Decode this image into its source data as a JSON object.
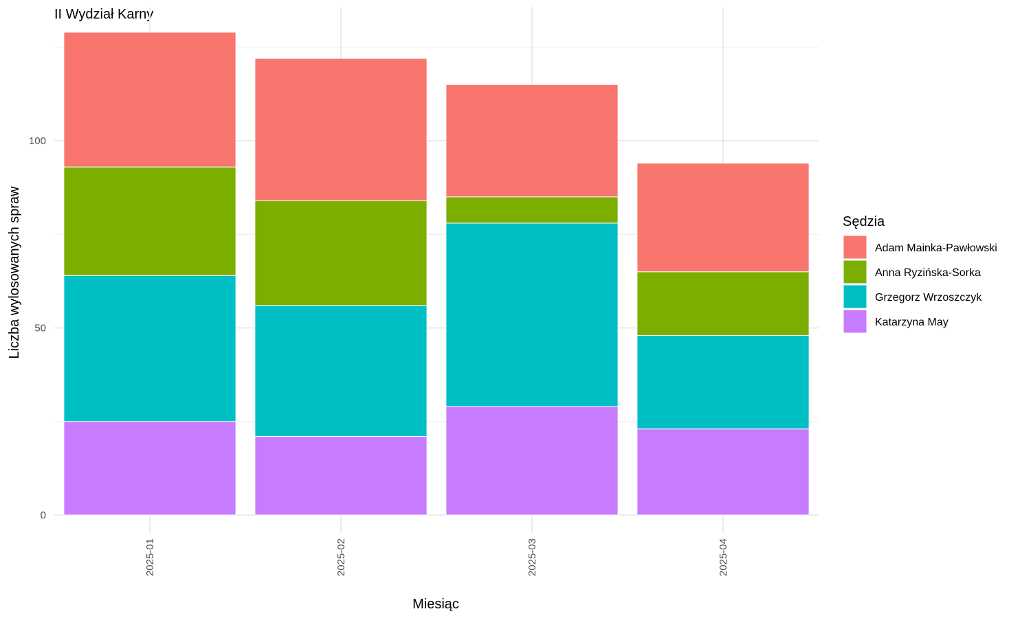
{
  "chart_data": {
    "type": "bar",
    "stacked": true,
    "title": "II Wydział Karny",
    "xlabel": "Miesiąc",
    "ylabel": "Liczba wylosowanych spraw",
    "categories": [
      "2025-01",
      "2025-02",
      "2025-03",
      "2025-04"
    ],
    "ylim": [
      0,
      135
    ],
    "yticks": [
      0,
      50,
      100
    ],
    "grid": true,
    "legend": {
      "title": "Sędzia",
      "position": "right"
    },
    "series": [
      {
        "name": "Katarzyna May",
        "color": "#C77CFF",
        "values": [
          25,
          21,
          29,
          23
        ]
      },
      {
        "name": "Grzegorz Wrzoszczyk",
        "color": "#00BFC4",
        "values": [
          39,
          35,
          49,
          25
        ]
      },
      {
        "name": "Anna Ryzińska-Sorka",
        "color": "#7CAE00",
        "values": [
          29,
          28,
          7,
          17
        ]
      },
      {
        "name": "Adam Mainka-Pawłowski",
        "color": "#F8766D",
        "values": [
          36,
          38,
          30,
          29
        ]
      }
    ],
    "legend_order": [
      "Adam Mainka-Pawłowski",
      "Anna Ryzińska-Sorka",
      "Grzegorz Wrzoszczyk",
      "Katarzyna May"
    ]
  }
}
